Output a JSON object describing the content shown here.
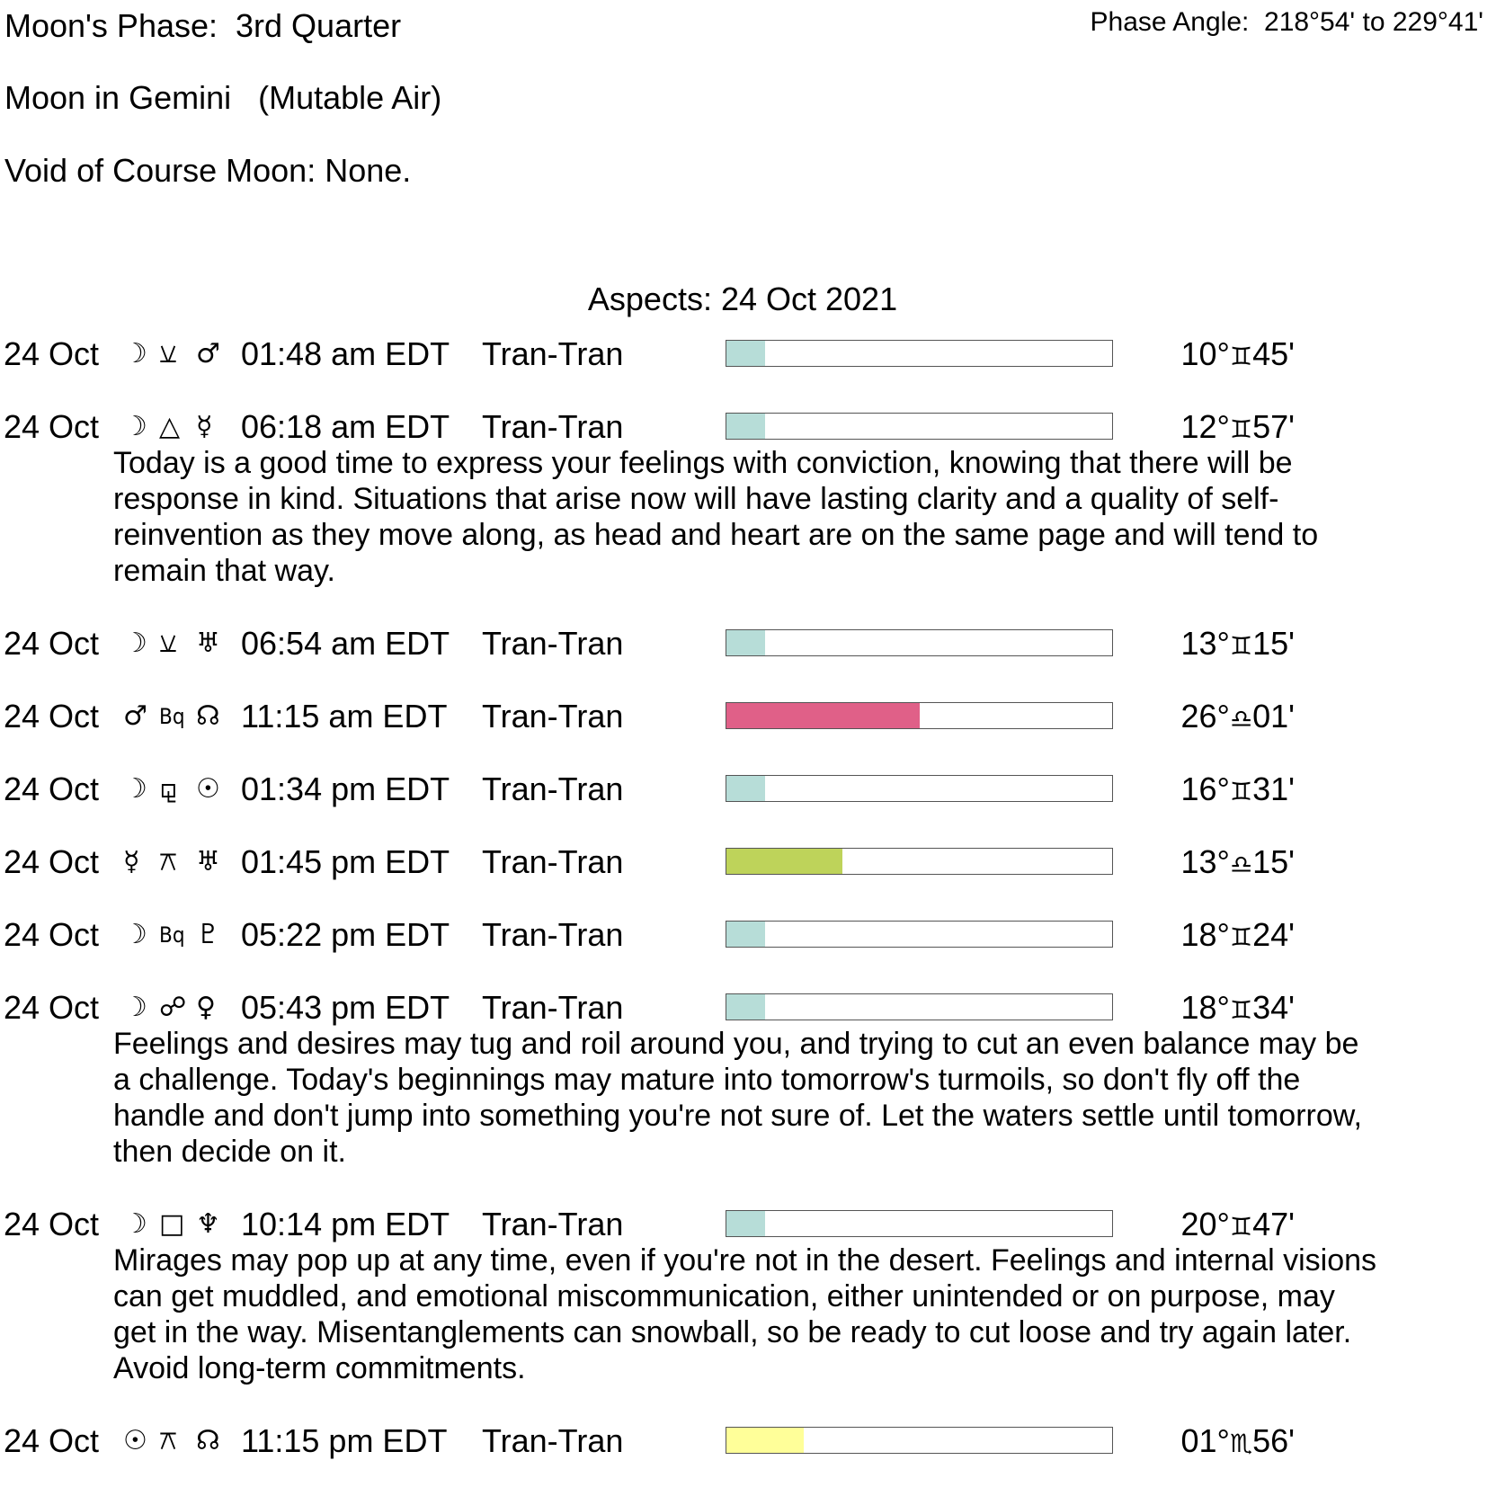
{
  "header": {
    "moon_phase": "Moon's Phase:  3rd Quarter",
    "phase_angle": "Phase Angle:  218°54' to 229°41'",
    "moon_sign": "Moon in Gemini   (Mutable Air)",
    "void_of_course": "Void of Course Moon: None."
  },
  "aspects_title": "Aspects: 24 Oct 2021",
  "colors": {
    "moon": "#b7ddd8",
    "mars_node": "#e06088",
    "mercury_uranus": "#bed35a",
    "sun_node": "#ffff99"
  },
  "aspects": [
    {
      "date": "24 Oct",
      "planet1": "☽",
      "planet1_icon": "moon-icon",
      "aspect": "⚺",
      "aspect_icon": "semisquare-icon",
      "planet2": "♂",
      "planet2_icon": "mars-icon",
      "time": "01:48 am EDT",
      "type": "Tran-Tran",
      "strength": 10,
      "color": "#b7ddd8",
      "deg": "10°",
      "sign": "♊",
      "min": "45'",
      "desc": []
    },
    {
      "date": "24 Oct",
      "planet1": "☽",
      "planet1_icon": "moon-icon",
      "aspect": "△",
      "aspect_icon": "trine-icon",
      "planet2": "☿",
      "planet2_icon": "mercury-icon",
      "time": "06:18 am EDT",
      "type": "Tran-Tran",
      "strength": 10,
      "color": "#b7ddd8",
      "deg": "12°",
      "sign": "♊",
      "min": "57'",
      "desc": [
        "Today is a good time to express your feelings with conviction, knowing that there will be",
        "response in kind. Situations that arise now will have lasting clarity and a quality of self-",
        "reinvention as they move along, as head and heart are on the same page and will tend to",
        "remain that way."
      ]
    },
    {
      "date": "24 Oct",
      "planet1": "☽",
      "planet1_icon": "moon-icon",
      "aspect": "⚺",
      "aspect_icon": "semisextile-icon",
      "planet2": "♅",
      "planet2_icon": "uranus-icon",
      "time": "06:54 am EDT",
      "type": "Tran-Tran",
      "strength": 10,
      "color": "#b7ddd8",
      "deg": "13°",
      "sign": "♊",
      "min": "15'",
      "desc": []
    },
    {
      "date": "24 Oct",
      "planet1": "♂",
      "planet1_icon": "mars-icon",
      "aspect": "Bq",
      "aspect_icon": "biquintile-icon",
      "planet2": "☊",
      "planet2_icon": "north-node-icon",
      "time": "11:15 am EDT",
      "type": "Tran-Tran",
      "strength": 50,
      "color": "#e06088",
      "deg": "26°",
      "sign": "♎",
      "min": "01'",
      "desc": []
    },
    {
      "date": "24 Oct",
      "planet1": "☽",
      "planet1_icon": "moon-icon",
      "aspect": "⚼",
      "aspect_icon": "sesquiquadrate-icon",
      "planet2": "☉",
      "planet2_icon": "sun-icon",
      "time": "01:34 pm EDT",
      "type": "Tran-Tran",
      "strength": 10,
      "color": "#b7ddd8",
      "deg": "16°",
      "sign": "♊",
      "min": "31'",
      "desc": []
    },
    {
      "date": "24 Oct",
      "planet1": "☿",
      "planet1_icon": "mercury-icon",
      "aspect": "⚻",
      "aspect_icon": "quincunx-icon",
      "planet2": "♅",
      "planet2_icon": "uranus-icon",
      "time": "01:45 pm EDT",
      "type": "Tran-Tran",
      "strength": 30,
      "color": "#bed35a",
      "deg": "13°",
      "sign": "♎",
      "min": "15'",
      "desc": []
    },
    {
      "date": "24 Oct",
      "planet1": "☽",
      "planet1_icon": "moon-icon",
      "aspect": "Bq",
      "aspect_icon": "biquintile-icon",
      "planet2": "♇",
      "planet2_icon": "pluto-icon",
      "time": "05:22 pm EDT",
      "type": "Tran-Tran",
      "strength": 10,
      "color": "#b7ddd8",
      "deg": "18°",
      "sign": "♊",
      "min": "24'",
      "desc": []
    },
    {
      "date": "24 Oct",
      "planet1": "☽",
      "planet1_icon": "moon-icon",
      "aspect": "☍",
      "aspect_icon": "opposition-icon",
      "planet2": "♀",
      "planet2_icon": "venus-icon",
      "time": "05:43 pm EDT",
      "type": "Tran-Tran",
      "strength": 10,
      "color": "#b7ddd8",
      "deg": "18°",
      "sign": "♊",
      "min": "34'",
      "desc": [
        "Feelings and desires may tug and roil around you, and trying to cut an even balance may be",
        "a challenge. Today's beginnings may mature into tomorrow's turmoils, so don't fly off the",
        "handle and don't jump into something you're not sure of. Let the waters settle until tomorrow,",
        "then decide on it."
      ]
    },
    {
      "date": "24 Oct",
      "planet1": "☽",
      "planet1_icon": "moon-icon",
      "aspect": "□",
      "aspect_icon": "square-icon",
      "planet2": "♆",
      "planet2_icon": "neptune-icon",
      "time": "10:14 pm EDT",
      "type": "Tran-Tran",
      "strength": 10,
      "color": "#b7ddd8",
      "deg": "20°",
      "sign": "♊",
      "min": "47'",
      "desc": [
        "Mirages may pop up at any time, even if you're not in the desert. Feelings and internal visions",
        "can get muddled, and emotional miscommunication, either unintended or on purpose, may",
        "get in the way. Misentanglements can snowball, so be ready to cut loose and try again later.",
        "Avoid long-term commitments."
      ]
    },
    {
      "date": "24 Oct",
      "planet1": "☉",
      "planet1_icon": "sun-icon",
      "aspect": "⚻",
      "aspect_icon": "quincunx-icon",
      "planet2": "☊",
      "planet2_icon": "north-node-icon",
      "time": "11:15 pm EDT",
      "type": "Tran-Tran",
      "strength": 20,
      "color": "#ffff99",
      "deg": "01°",
      "sign": "♏",
      "min": "56'",
      "desc": []
    }
  ]
}
